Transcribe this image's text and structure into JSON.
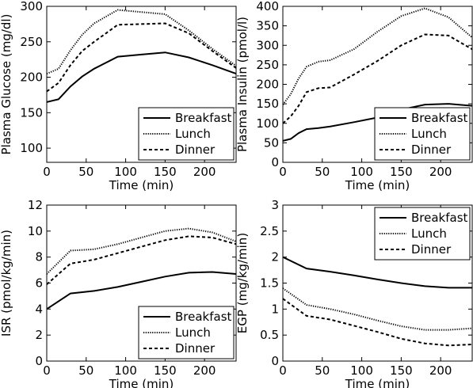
{
  "chart_data": [
    {
      "type": "line",
      "xlabel": "Time (min)",
      "ylabel": "Plasma Glucose (mg/dl)",
      "xlim": [
        0,
        240
      ],
      "ylim": [
        80,
        300
      ],
      "xticks": [
        0,
        50,
        100,
        150,
        200
      ],
      "yticks": [
        100,
        150,
        200,
        250,
        300
      ],
      "legend_position": "lower-right",
      "series": [
        {
          "name": "Breakfast",
          "style": "solid",
          "x": [
            0,
            15,
            30,
            45,
            60,
            90,
            120,
            150,
            180,
            210,
            240
          ],
          "y": [
            165,
            169,
            187,
            201,
            212,
            229,
            232,
            235,
            228,
            217,
            205
          ]
        },
        {
          "name": "Lunch",
          "style": "dotted",
          "x": [
            0,
            15,
            30,
            45,
            60,
            90,
            120,
            150,
            180,
            210,
            240
          ],
          "y": [
            205,
            212,
            238,
            260,
            276,
            295,
            292,
            289,
            266,
            240,
            216
          ]
        },
        {
          "name": "Dinner",
          "style": "dashed",
          "x": [
            0,
            15,
            30,
            45,
            60,
            90,
            120,
            150,
            180,
            210,
            240
          ],
          "y": [
            180,
            192,
            217,
            237,
            250,
            274,
            275,
            276,
            262,
            237,
            213
          ]
        }
      ]
    },
    {
      "type": "line",
      "xlabel": "Time (min)",
      "ylabel": "Plasma Insulin (pmol/l)",
      "xlim": [
        0,
        240
      ],
      "ylim": [
        0,
        400
      ],
      "xticks": [
        0,
        50,
        100,
        150,
        200
      ],
      "yticks": [
        0,
        50,
        100,
        150,
        200,
        250,
        300,
        350,
        400
      ],
      "legend_position": "lower-right",
      "series": [
        {
          "name": "Breakfast",
          "style": "solid",
          "x": [
            0,
            10,
            20,
            30,
            45,
            60,
            90,
            120,
            150,
            180,
            210,
            240
          ],
          "y": [
            55,
            60,
            75,
            85,
            88,
            92,
            103,
            115,
            135,
            148,
            150,
            145
          ]
        },
        {
          "name": "Lunch",
          "style": "dotted",
          "x": [
            0,
            10,
            20,
            30,
            45,
            60,
            90,
            120,
            150,
            180,
            210,
            240
          ],
          "y": [
            148,
            175,
            215,
            245,
            258,
            262,
            290,
            335,
            375,
            395,
            372,
            320
          ]
        },
        {
          "name": "Dinner",
          "style": "dashed",
          "x": [
            0,
            10,
            20,
            30,
            45,
            60,
            90,
            120,
            150,
            180,
            210,
            240
          ],
          "y": [
            100,
            118,
            145,
            180,
            190,
            192,
            225,
            260,
            300,
            328,
            325,
            290
          ]
        }
      ]
    },
    {
      "type": "line",
      "xlabel": "Time (min)",
      "ylabel": "ISR (pmol/kg/min)",
      "xlim": [
        0,
        240
      ],
      "ylim": [
        0,
        12
      ],
      "xticks": [
        0,
        50,
        100,
        150,
        200
      ],
      "yticks": [
        0,
        2,
        4,
        6,
        8,
        10,
        12
      ],
      "legend_position": "lower-right",
      "series": [
        {
          "name": "Breakfast",
          "style": "solid",
          "x": [
            0,
            30,
            60,
            90,
            120,
            150,
            180,
            210,
            240
          ],
          "y": [
            4.0,
            5.2,
            5.4,
            5.7,
            6.1,
            6.5,
            6.8,
            6.85,
            6.7
          ]
        },
        {
          "name": "Lunch",
          "style": "dotted",
          "x": [
            0,
            30,
            60,
            90,
            120,
            150,
            180,
            210,
            240
          ],
          "y": [
            6.7,
            8.5,
            8.6,
            9.0,
            9.5,
            10.0,
            10.2,
            9.9,
            9.2
          ]
        },
        {
          "name": "Dinner",
          "style": "dashed",
          "x": [
            0,
            30,
            60,
            90,
            120,
            150,
            180,
            210,
            240
          ],
          "y": [
            5.9,
            7.5,
            7.8,
            8.3,
            8.8,
            9.3,
            9.6,
            9.5,
            9.0
          ]
        }
      ]
    },
    {
      "type": "line",
      "xlabel": "Time (min)",
      "ylabel": "EGP (mg/kg/min)",
      "xlim": [
        0,
        240
      ],
      "ylim": [
        0,
        3
      ],
      "xticks": [
        0,
        50,
        100,
        150,
        200
      ],
      "yticks": [
        0,
        0.5,
        1,
        1.5,
        2,
        2.5,
        3
      ],
      "legend_position": "upper-right",
      "series": [
        {
          "name": "Breakfast",
          "style": "solid",
          "x": [
            0,
            30,
            60,
            90,
            120,
            150,
            180,
            210,
            240
          ],
          "y": [
            2.0,
            1.78,
            1.72,
            1.65,
            1.57,
            1.5,
            1.44,
            1.41,
            1.41
          ]
        },
        {
          "name": "Lunch",
          "style": "dotted",
          "x": [
            0,
            30,
            60,
            90,
            120,
            150,
            180,
            210,
            240
          ],
          "y": [
            1.4,
            1.08,
            1.0,
            0.9,
            0.78,
            0.67,
            0.6,
            0.6,
            0.63
          ]
        },
        {
          "name": "Dinner",
          "style": "dashed",
          "x": [
            0,
            30,
            60,
            90,
            120,
            150,
            180,
            210,
            240
          ],
          "y": [
            1.2,
            0.87,
            0.8,
            0.68,
            0.56,
            0.43,
            0.34,
            0.3,
            0.32
          ]
        }
      ]
    }
  ]
}
